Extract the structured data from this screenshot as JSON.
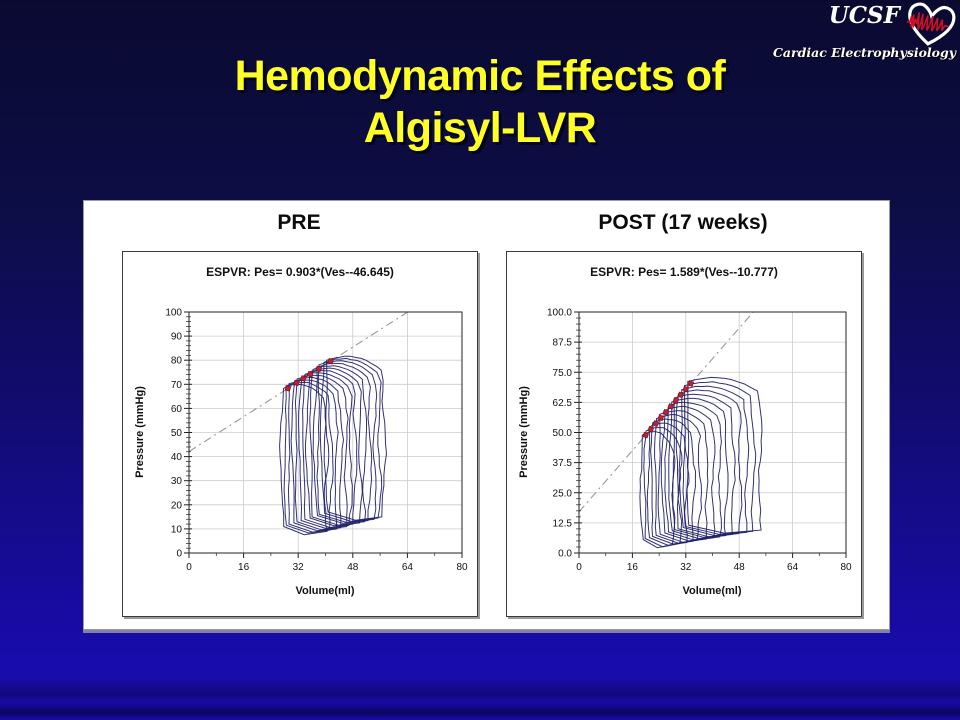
{
  "slide": {
    "title": {
      "line1": "Hemodynamic Effects of",
      "line2": "Algisyl-LVR"
    },
    "logo": {
      "org": "UCSF",
      "caption": "Cardiac Electrophysiology",
      "heart_icon": "heart-ecg-icon"
    },
    "colors": {
      "background_top": "#0a0a31",
      "background_bottom": "#190cae",
      "title_text": "#ffff28",
      "panel": "#ffffff",
      "loop": "#20206a",
      "espvr_dash": "#999999",
      "es_marker": "#bb2233",
      "grid": "#cccccc"
    }
  },
  "chart_data": [
    {
      "type": "line",
      "header": "PRE",
      "title": "ESPVR: Pes= 0.903*(Ves--46.645)",
      "xlabel": "Volume(ml)",
      "ylabel": "Pressure (mmHg)",
      "xlim": [
        0,
        80
      ],
      "ylim": [
        0,
        100
      ],
      "xticks": [
        0,
        16,
        32,
        48,
        64,
        80
      ],
      "yticks": [
        0,
        10,
        20,
        30,
        40,
        50,
        60,
        70,
        80,
        90,
        100
      ],
      "ytick_decimals": 0,
      "x_minor_step": 8,
      "y_minor_step": 2,
      "grid": true,
      "legend": "none",
      "espvr": {
        "slope": 0.903,
        "v_intercept": -46.645
      },
      "espvr_line": [
        [
          0,
          42.1
        ],
        [
          64.1,
          100
        ]
      ],
      "loops": [
        [
          27.5,
          40.0,
          68.3,
          8.0
        ],
        [
          28.6,
          41.4,
          69.3,
          8.5
        ],
        [
          29.7,
          42.8,
          70.2,
          9.0
        ],
        [
          30.8,
          44.3,
          71.2,
          9.5
        ],
        [
          31.8,
          45.7,
          72.2,
          10.0
        ],
        [
          32.9,
          47.1,
          73.2,
          10.5
        ],
        [
          34.0,
          48.5,
          74.2,
          11.0
        ],
        [
          35.1,
          49.9,
          75.1,
          11.5
        ],
        [
          36.2,
          51.3,
          76.1,
          12.0
        ],
        [
          37.3,
          52.8,
          77.1,
          12.5
        ],
        [
          38.3,
          54.2,
          78.1,
          13.0
        ],
        [
          39.4,
          55.6,
          79.1,
          13.5
        ],
        [
          40.5,
          57.0,
          80.0,
          14.0
        ]
      ],
      "es_points": [
        [
          29,
          68.3
        ],
        [
          31.5,
          70.6
        ],
        [
          33.5,
          72.4
        ],
        [
          35.5,
          74.2
        ],
        [
          38,
          76.4
        ],
        [
          41.5,
          79.6
        ]
      ]
    },
    {
      "type": "line",
      "header": "POST (17 weeks)",
      "title": "ESPVR: Pes= 1.589*(Ves--10.777)",
      "xlabel": "Volume(ml)",
      "ylabel": "Pressure (mmHg)",
      "xlim": [
        0,
        80
      ],
      "ylim": [
        0,
        100
      ],
      "xticks": [
        0,
        16,
        32,
        48,
        64,
        80
      ],
      "yticks": [
        0,
        12.5,
        25,
        37.5,
        50,
        62.5,
        75,
        87.5,
        100
      ],
      "ytick_decimals": 1,
      "x_minor_step": 8,
      "y_minor_step": 2.5,
      "grid": true,
      "legend": "none",
      "espvr": {
        "slope": 1.589,
        "v_intercept": -10.777
      },
      "espvr_line": [
        [
          0,
          17.1
        ],
        [
          52.2,
          100
        ]
      ],
      "loops": [
        [
          19.0,
          28.0,
          48.9,
          2.5
        ],
        [
          20.1,
          30.0,
          50.6,
          3.0
        ],
        [
          21.2,
          32.0,
          52.3,
          3.4
        ],
        [
          22.2,
          34.0,
          54.0,
          3.9
        ],
        [
          23.3,
          36.0,
          55.8,
          4.3
        ],
        [
          24.4,
          38.0,
          57.5,
          4.8
        ],
        [
          25.5,
          40.0,
          59.2,
          5.3
        ],
        [
          26.5,
          42.0,
          60.9,
          5.7
        ],
        [
          27.6,
          44.0,
          62.6,
          6.2
        ],
        [
          28.7,
          46.0,
          64.3,
          6.7
        ],
        [
          29.8,
          48.0,
          66.0,
          7.1
        ],
        [
          30.9,
          50.0,
          67.7,
          7.6
        ],
        [
          31.9,
          52.0,
          69.4,
          8.0
        ],
        [
          33.0,
          54.0,
          71.2,
          8.5
        ]
      ],
      "es_points": [
        [
          20,
          48.9
        ],
        [
          21.5,
          51.3
        ],
        [
          23,
          53.7
        ],
        [
          24.5,
          56.1
        ],
        [
          26,
          58.4
        ],
        [
          27.5,
          60.8
        ],
        [
          29,
          63.2
        ],
        [
          30.5,
          65.6
        ],
        [
          32,
          68.0
        ],
        [
          33.5,
          70.3
        ]
      ]
    }
  ]
}
